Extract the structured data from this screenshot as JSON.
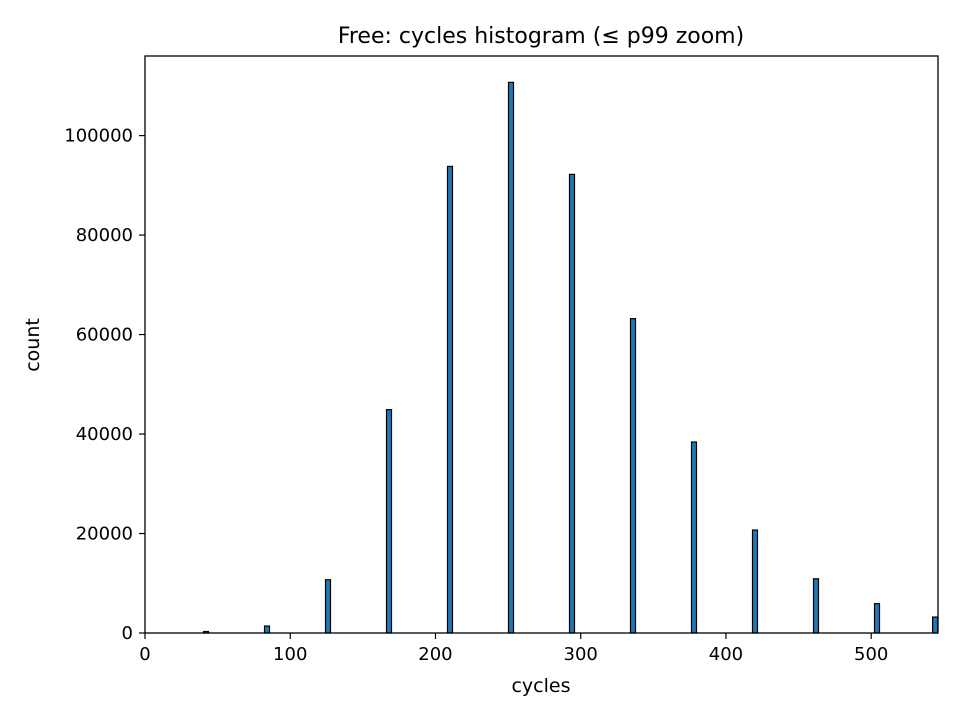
{
  "chart_data": {
    "type": "bar",
    "title": "Free: cycles histogram (≤ p99 zoom)",
    "xlabel": "cycles",
    "ylabel": "count",
    "xlim": [
      0,
      546
    ],
    "ylim": [
      0,
      116000
    ],
    "xticks": [
      0,
      100,
      200,
      300,
      400,
      500
    ],
    "yticks": [
      0,
      20000,
      40000,
      60000,
      80000,
      100000
    ],
    "bar_color": "#1f77b4",
    "edge_color": "#000000",
    "grid": false,
    "legend": "none",
    "bins": [
      {
        "x": 42,
        "value": 300
      },
      {
        "x": 84,
        "value": 1400
      },
      {
        "x": 126,
        "value": 10700
      },
      {
        "x": 168,
        "value": 44900
      },
      {
        "x": 210,
        "value": 93800
      },
      {
        "x": 252,
        "value": 110700
      },
      {
        "x": 294,
        "value": 92200
      },
      {
        "x": 336,
        "value": 63200
      },
      {
        "x": 378,
        "value": 38400
      },
      {
        "x": 420,
        "value": 20700
      },
      {
        "x": 462,
        "value": 10900
      },
      {
        "x": 504,
        "value": 5900
      },
      {
        "x": 544,
        "value": 3200
      }
    ]
  }
}
